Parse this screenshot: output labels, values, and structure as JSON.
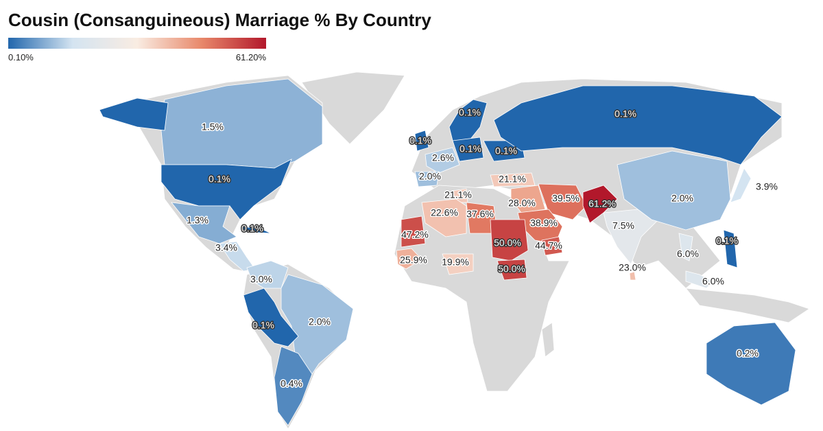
{
  "chart_data": {
    "type": "choropleth",
    "title": "Cousin (Consanguineous) Marriage % By Country",
    "legend": {
      "range": [
        0.1,
        61.2
      ],
      "labels": [
        "0.10%",
        "61.20%"
      ]
    },
    "colors": [
      "#2166ac",
      "#d4e4f1",
      "#f9ece2",
      "#e8886a",
      "#b2182b"
    ],
    "no_data_color": "#d9d9d9",
    "values": [
      1.5,
      0.1,
      1.3,
      0.1,
      3.4,
      3.0,
      2.0,
      0.1,
      0.4,
      0.1,
      0.1,
      0.1,
      0.1,
      2.6,
      2.0,
      21.1,
      21.1,
      22.6,
      37.6,
      28.0,
      39.5,
      61.2,
      47.2,
      38.9,
      7.5,
      50.0,
      44.7,
      25.9,
      19.9,
      50.0,
      23.0,
      0.1,
      2.0,
      3.9,
      0.1,
      6.0,
      6.0,
      0.2
    ],
    "value_labels": [
      "1.5%",
      "0.1%",
      "1.3%",
      "0.1%",
      "3.4%",
      "3.0%",
      "2.0%",
      "0.1%",
      "0.4%",
      "0.1%",
      "0.1%",
      "0.1%",
      "0.1%",
      "2.6%",
      "2.0%",
      "21.1%",
      "21.1%",
      "22.6%",
      "37.6%",
      "28.0%",
      "39.5%",
      "61.2%",
      "47.2%",
      "38.9%",
      "7.5%",
      "50.0%",
      "44.7%",
      "25.9%",
      "19.9%",
      "50.0%",
      "23.0%",
      "0.1%",
      "2.0%",
      "3.9%",
      "0.1%",
      "6.0%",
      "6.0%",
      "0.2%"
    ]
  }
}
